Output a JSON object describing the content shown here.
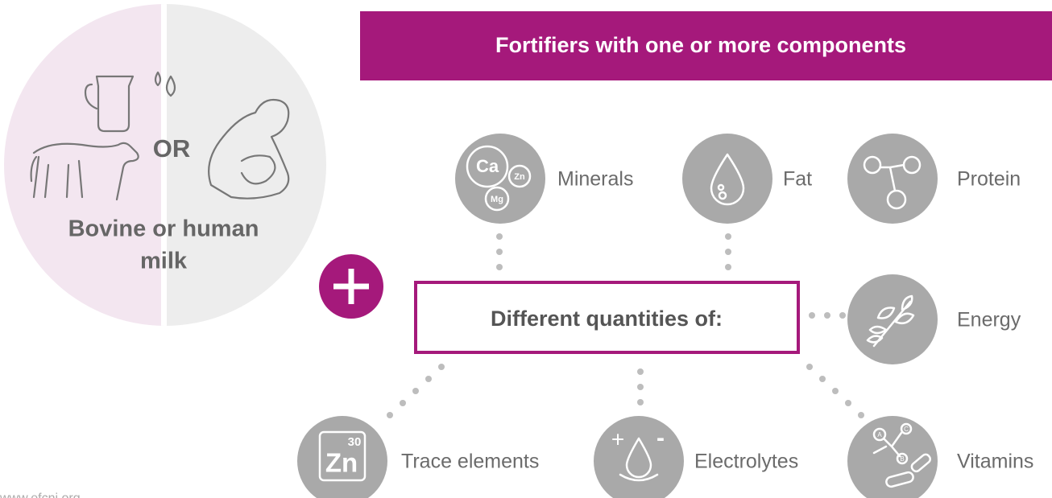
{
  "header": {
    "title": "Fortifiers with one or more components"
  },
  "milk": {
    "or": "OR",
    "label_lines": [
      "Bovine or human",
      "milk"
    ]
  },
  "center": {
    "label": "Different quantities of:"
  },
  "nodes": [
    {
      "label": "Minerals",
      "icon_text": [
        "Ca",
        "Zn",
        "Mg"
      ]
    },
    {
      "label": "Fat"
    },
    {
      "label": "Protein"
    },
    {
      "label": "Energy"
    },
    {
      "label": "Trace elements",
      "icon_text": [
        "30",
        "Zn"
      ]
    },
    {
      "label": "Electrolytes",
      "icon_text": [
        "+",
        "-"
      ]
    },
    {
      "label": "Vitamins",
      "icon_text": [
        "A",
        "C",
        "B"
      ]
    }
  ],
  "footer": {
    "url": "www.efcni.org"
  }
}
